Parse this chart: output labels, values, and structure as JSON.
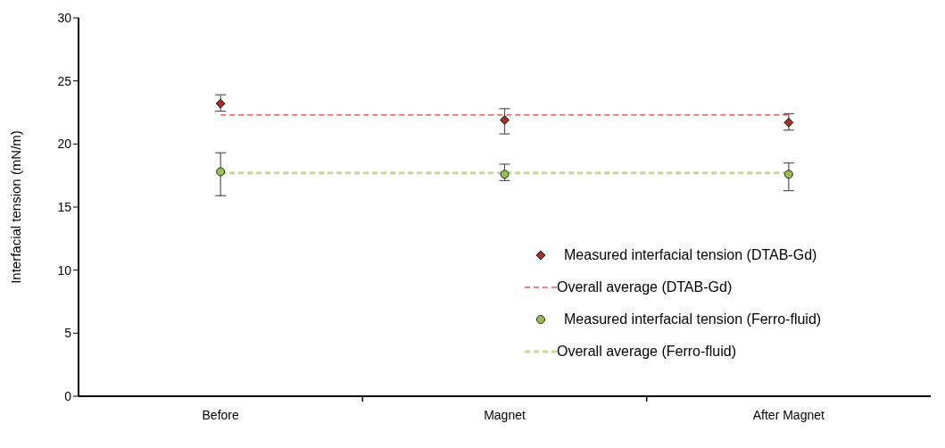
{
  "chart_data": {
    "type": "scatter",
    "ylabel": "Interfacial tension (mN/m)",
    "categories": [
      "Before",
      "Magnet",
      "After Magnet"
    ],
    "ylim": [
      0,
      30
    ],
    "yticks": [
      0,
      5,
      10,
      15,
      20,
      25,
      30
    ],
    "grid": false,
    "legend": "bottom right",
    "series": [
      {
        "name": "Measured interfacial tension (DTAB-Gd)",
        "marker": "diamond",
        "color": "#a0302c",
        "values": [
          23.2,
          21.9,
          21.7
        ],
        "errors": [
          [
            22.6,
            23.9
          ],
          [
            20.8,
            22.8
          ],
          [
            21.1,
            22.4
          ]
        ]
      },
      {
        "name": "Overall average (DTAB-Gd)",
        "type": "line",
        "marker": "none",
        "line_style": "dashed",
        "color": "#e0605c",
        "values": [
          22.3,
          22.3,
          22.3
        ]
      },
      {
        "name": "Measured interfacial tension (Ferro-fluid)",
        "marker": "circle",
        "color": "#9bbb59",
        "values": [
          17.8,
          17.6,
          17.6
        ],
        "errors": [
          [
            15.9,
            19.3
          ],
          [
            17.1,
            18.4
          ],
          [
            16.3,
            18.5
          ]
        ]
      },
      {
        "name": "Overall average (Ferro-fluid)",
        "type": "line",
        "marker": "none",
        "line_style": "dashed",
        "color": "#c3d69b",
        "values": [
          17.7,
          17.7,
          17.7
        ]
      }
    ]
  }
}
